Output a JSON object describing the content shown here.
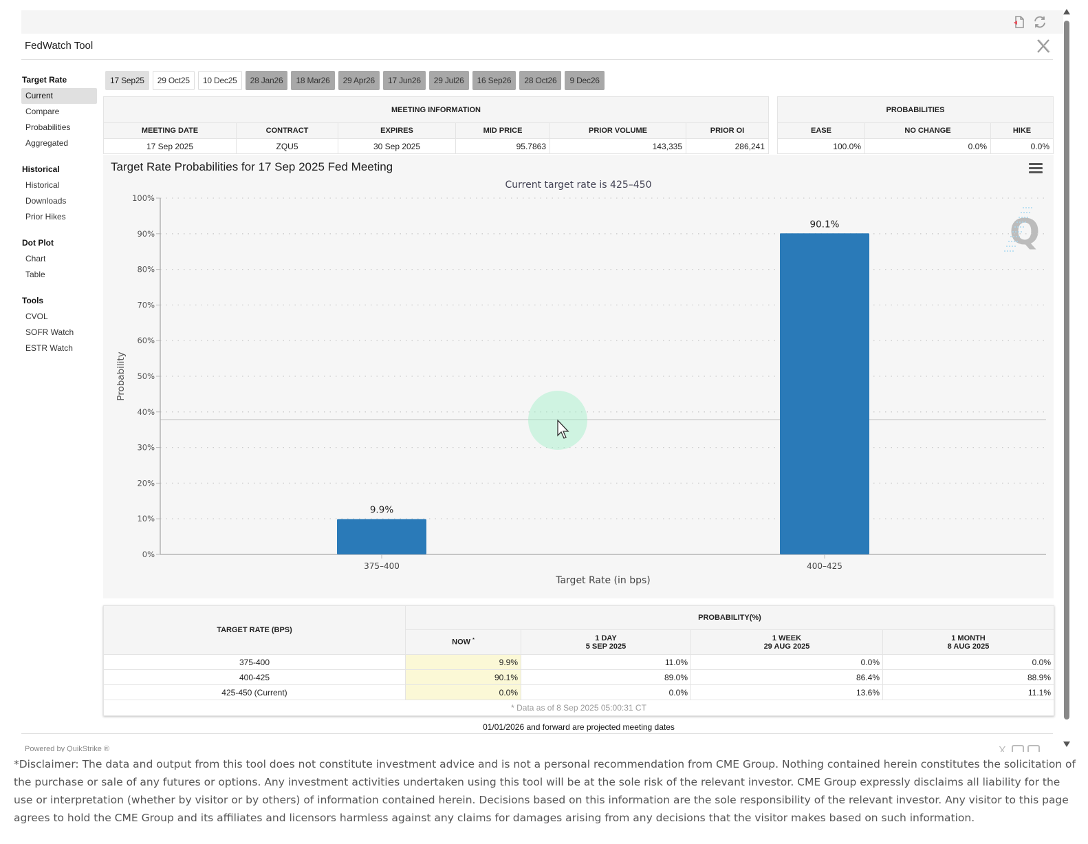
{
  "app": {
    "title": "FedWatch Tool",
    "icons": {
      "export": "pdf-export-icon",
      "refresh": "refresh-icon",
      "close": "x-logo-icon"
    }
  },
  "sidebar": {
    "groups": [
      {
        "heading": "Target Rate",
        "items": [
          {
            "label": "Current",
            "active": true
          },
          {
            "label": "Compare"
          },
          {
            "label": "Probabilities"
          },
          {
            "label": "Aggregated"
          }
        ]
      },
      {
        "heading": "Historical",
        "items": [
          {
            "label": "Historical"
          },
          {
            "label": "Downloads"
          },
          {
            "label": "Prior Hikes"
          }
        ]
      },
      {
        "heading": "Dot Plot",
        "items": [
          {
            "label": "Chart"
          },
          {
            "label": "Table"
          }
        ]
      },
      {
        "heading": "Tools",
        "items": [
          {
            "label": "CVOL"
          },
          {
            "label": "SOFR Watch"
          },
          {
            "label": "ESTR Watch"
          }
        ]
      }
    ]
  },
  "meeting_tabs": [
    {
      "label": "17 Sep25",
      "state": "selected"
    },
    {
      "label": "29 Oct25",
      "state": "normal"
    },
    {
      "label": "10 Dec25",
      "state": "normal"
    },
    {
      "label": "28 Jan26",
      "state": "projected"
    },
    {
      "label": "18 Mar26",
      "state": "projected"
    },
    {
      "label": "29 Apr26",
      "state": "projected"
    },
    {
      "label": "17 Jun26",
      "state": "projected"
    },
    {
      "label": "29 Jul26",
      "state": "projected"
    },
    {
      "label": "16 Sep26",
      "state": "projected"
    },
    {
      "label": "28 Oct26",
      "state": "projected"
    },
    {
      "label": "9 Dec26",
      "state": "projected"
    }
  ],
  "meeting_info": {
    "caption": "MEETING INFORMATION",
    "headers": [
      "MEETING DATE",
      "CONTRACT",
      "EXPIRES",
      "MID PRICE",
      "PRIOR VOLUME",
      "PRIOR OI"
    ],
    "row": [
      "17 Sep 2025",
      "ZQU5",
      "30 Sep 2025",
      "95.7863",
      "143,335",
      "286,241"
    ]
  },
  "probabilities": {
    "caption": "PROBABILITIES",
    "headers": [
      "EASE",
      "NO CHANGE",
      "HIKE"
    ],
    "row": [
      "100.0%",
      "0.0%",
      "0.0%"
    ]
  },
  "chart_data": {
    "type": "bar",
    "title": "Target Rate Probabilities for 17 Sep 2025 Fed Meeting",
    "subtitle": "Current target rate is 425–450",
    "xlabel": "Target Rate (in bps)",
    "ylabel": "Probability",
    "categories": [
      "375–400",
      "400–425"
    ],
    "values": [
      9.9,
      90.1
    ],
    "data_labels": [
      "9.9%",
      "90.1%"
    ],
    "ylim": [
      0,
      100
    ],
    "yticks": [
      0,
      10,
      20,
      30,
      40,
      50,
      60,
      70,
      80,
      90,
      100
    ],
    "ytick_labels": [
      "0%",
      "10%",
      "20%",
      "30%",
      "40%",
      "50%",
      "60%",
      "70%",
      "80%",
      "90%",
      "100%"
    ],
    "grid": true,
    "bar_color": "#2a7ab8",
    "legend": "none",
    "watermark": "Q"
  },
  "prob_table": {
    "row_header": "TARGET RATE (BPS)",
    "group_header": "PROBABILITY(%)",
    "columns": [
      {
        "line1": "NOW",
        "sup": "*",
        "line2": ""
      },
      {
        "line1": "1 DAY",
        "line2": "5 SEP 2025"
      },
      {
        "line1": "1 WEEK",
        "line2": "29 AUG 2025"
      },
      {
        "line1": "1 MONTH",
        "line2": "8 AUG 2025"
      }
    ],
    "rows": [
      {
        "rate": "375-400",
        "values": [
          "9.9%",
          "11.0%",
          "0.0%",
          "0.0%"
        ]
      },
      {
        "rate": "400-425",
        "values": [
          "90.1%",
          "89.0%",
          "86.4%",
          "88.9%"
        ]
      },
      {
        "rate": "425-450 (Current)",
        "values": [
          "0.0%",
          "0.0%",
          "13.6%",
          "11.1%"
        ]
      }
    ],
    "footnote": "* Data as of 8 Sep 2025 05:00:31 CT"
  },
  "projected_note": "01/01/2026 and forward are projected meeting dates",
  "powered_by": "Powered by QuikStrike ®",
  "disclaimer": "*Disclaimer: The data and output from this tool does not constitute investment advice and is not a personal recommendation from CME Group.  Nothing contained herein constitutes the solicitation of the purchase or sale of any futures or options.  Any investment activities undertaken using this tool will be at the sole risk of the relevant investor.  CME Group expressly disclaims all liability for the use or interpretation (whether by visitor or by others) of information contained herein. Decisions based on this information are the sole responsibility of the relevant investor.  Any visitor to this page agrees to hold the CME Group and its affiliates and licensors harmless against any claims for damages arising from any decisions that the visitor makes based on such information."
}
